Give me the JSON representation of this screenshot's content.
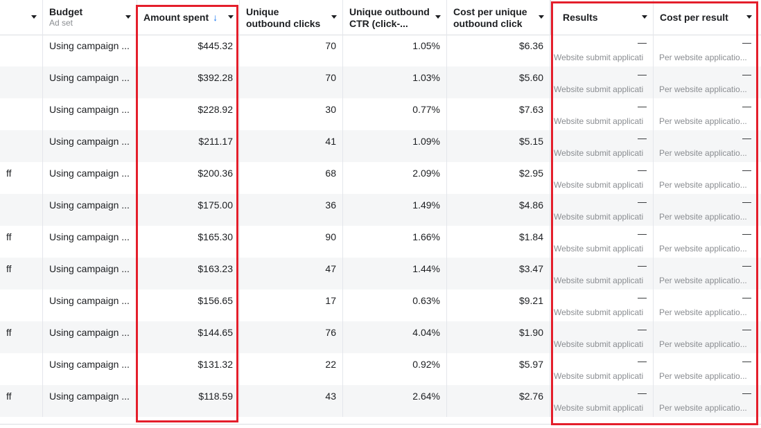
{
  "headers": {
    "budget": {
      "title": "Budget",
      "sub": "Ad set"
    },
    "amount_spent": {
      "title": "Amount spent",
      "sort_icon": "↓"
    },
    "unique_outbound_clicks": {
      "title": "Unique outbound clicks"
    },
    "unique_outbound_ctr": {
      "title": "Unique outbound CTR (click-..."
    },
    "cost_per_unique_outbound_click": {
      "title": "Cost per unique outbound click"
    },
    "results": {
      "title": "Results"
    },
    "cost_per_result": {
      "title": "Cost per result"
    }
  },
  "rows": [
    {
      "frag": "",
      "budget": "Using campaign ...",
      "amount": "$445.32",
      "clicks": "70",
      "ctr": "1.05%",
      "cpc": "$6.36",
      "results": "—",
      "results_sub": "Website submit applicati",
      "cpr": "—",
      "cpr_sub": "Per website applicatio..."
    },
    {
      "frag": "",
      "budget": "Using campaign ...",
      "amount": "$392.28",
      "clicks": "70",
      "ctr": "1.03%",
      "cpc": "$5.60",
      "results": "—",
      "results_sub": "Website submit applicati",
      "cpr": "—",
      "cpr_sub": "Per website applicatio..."
    },
    {
      "frag": "",
      "budget": "Using campaign ...",
      "amount": "$228.92",
      "clicks": "30",
      "ctr": "0.77%",
      "cpc": "$7.63",
      "results": "—",
      "results_sub": "Website submit applicati",
      "cpr": "—",
      "cpr_sub": "Per website applicatio..."
    },
    {
      "frag": "",
      "budget": "Using campaign ...",
      "amount": "$211.17",
      "clicks": "41",
      "ctr": "1.09%",
      "cpc": "$5.15",
      "results": "—",
      "results_sub": "Website submit applicati",
      "cpr": "—",
      "cpr_sub": "Per website applicatio..."
    },
    {
      "frag": "ff",
      "budget": "Using campaign ...",
      "amount": "$200.36",
      "clicks": "68",
      "ctr": "2.09%",
      "cpc": "$2.95",
      "results": "—",
      "results_sub": "Website submit applicati",
      "cpr": "—",
      "cpr_sub": "Per website applicatio..."
    },
    {
      "frag": "",
      "budget": "Using campaign ...",
      "amount": "$175.00",
      "clicks": "36",
      "ctr": "1.49%",
      "cpc": "$4.86",
      "results": "—",
      "results_sub": "Website submit applicati",
      "cpr": "—",
      "cpr_sub": "Per website applicatio..."
    },
    {
      "frag": "ff",
      "budget": "Using campaign ...",
      "amount": "$165.30",
      "clicks": "90",
      "ctr": "1.66%",
      "cpc": "$1.84",
      "results": "—",
      "results_sub": "Website submit applicati",
      "cpr": "—",
      "cpr_sub": "Per website applicatio..."
    },
    {
      "frag": "ff",
      "budget": "Using campaign ...",
      "amount": "$163.23",
      "clicks": "47",
      "ctr": "1.44%",
      "cpc": "$3.47",
      "results": "—",
      "results_sub": "Website submit applicati",
      "cpr": "—",
      "cpr_sub": "Per website applicatio..."
    },
    {
      "frag": "",
      "budget": "Using campaign ...",
      "amount": "$156.65",
      "clicks": "17",
      "ctr": "0.63%",
      "cpc": "$9.21",
      "results": "—",
      "results_sub": "Website submit applicati",
      "cpr": "—",
      "cpr_sub": "Per website applicatio..."
    },
    {
      "frag": "ff",
      "budget": "Using campaign ...",
      "amount": "$144.65",
      "clicks": "76",
      "ctr": "4.04%",
      "cpc": "$1.90",
      "results": "—",
      "results_sub": "Website submit applicati",
      "cpr": "—",
      "cpr_sub": "Per website applicatio..."
    },
    {
      "frag": "",
      "budget": "Using campaign ...",
      "amount": "$131.32",
      "clicks": "22",
      "ctr": "0.92%",
      "cpc": "$5.97",
      "results": "—",
      "results_sub": "Website submit applicati",
      "cpr": "—",
      "cpr_sub": "Per website applicatio..."
    },
    {
      "frag": "ff",
      "budget": "Using campaign ...",
      "amount": "$118.59",
      "clicks": "43",
      "ctr": "2.64%",
      "cpc": "$2.76",
      "results": "—",
      "results_sub": "Website submit applicati",
      "cpr": "—",
      "cpr_sub": "Per website applicatio..."
    }
  ],
  "colors": {
    "highlight": "#e41e2b",
    "sort_arrow": "#1877f2",
    "alt_row": "#f5f6f7",
    "border": "#e4e6eb",
    "muted_text": "#8a8d91"
  }
}
